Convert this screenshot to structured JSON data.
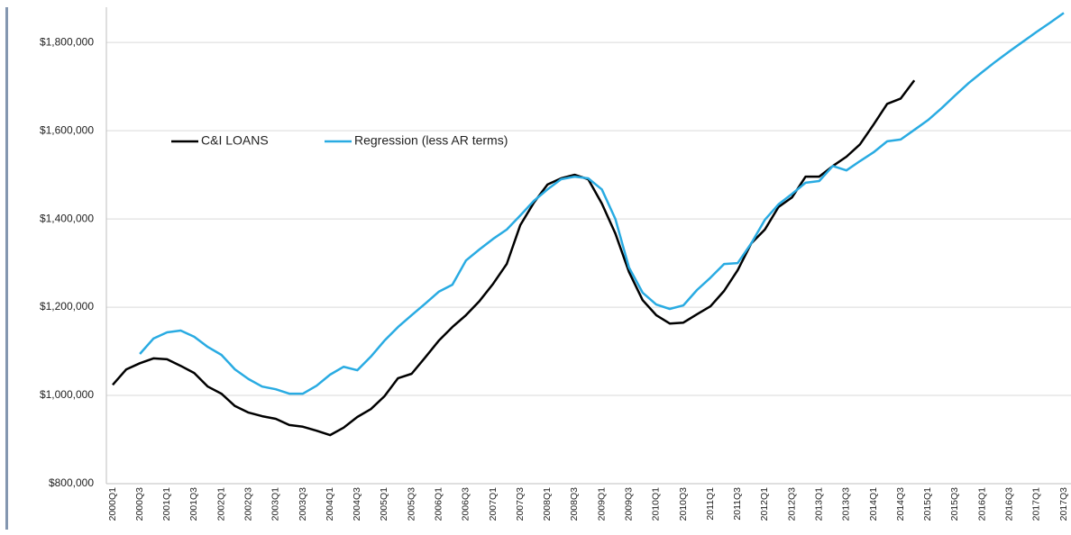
{
  "chart_data": {
    "type": "line",
    "categories": [
      "2000Q1",
      null,
      "2000Q3",
      null,
      "2001Q1",
      null,
      "2001Q3",
      null,
      "2002Q1",
      null,
      "2002Q3",
      null,
      "2003Q1",
      null,
      "2003Q3",
      null,
      "2004Q1",
      null,
      "2004Q3",
      null,
      "2005Q1",
      null,
      "2005Q3",
      null,
      "2006Q1",
      null,
      "2006Q3",
      null,
      "2007Q1",
      null,
      "2007Q3",
      null,
      "2008Q1",
      null,
      "2008Q3",
      null,
      "2009Q1",
      null,
      "2009Q3",
      null,
      "2010Q1",
      null,
      "2010Q3",
      null,
      "2011Q1",
      null,
      "2011Q3",
      null,
      "2012Q1",
      null,
      "2012Q3",
      null,
      "2013Q1",
      null,
      "2013Q3",
      null,
      "2014Q1",
      null,
      "2014Q3",
      null,
      "2015Q1",
      null,
      "2015Q3",
      null,
      "2016Q1",
      null,
      "2016Q3",
      null,
      "2017Q1",
      null,
      "2017Q3"
    ],
    "series": [
      {
        "name": "C&I LOANS",
        "color": "#000000",
        "values": [
          1024000,
          1059000,
          1073000,
          1084000,
          1082000,
          1067000,
          1051000,
          1020000,
          1004000,
          976000,
          961000,
          953000,
          947000,
          933000,
          929000,
          920000,
          910000,
          927000,
          951000,
          969000,
          998000,
          1039000,
          1049000,
          1086000,
          1124000,
          1155000,
          1182000,
          1214000,
          1253000,
          1298000,
          1386000,
          1437000,
          1478000,
          1492000,
          1500000,
          1490000,
          1435000,
          1367000,
          1280000,
          1216000,
          1182000,
          1163000,
          1165000,
          1184000,
          1202000,
          1237000,
          1284000,
          1345000,
          1376000,
          1427000,
          1449000,
          1496000,
          1496000,
          1520000,
          1541000,
          1569000,
          1614000,
          1661000,
          1673000,
          1714000,
          null,
          null,
          null,
          null,
          null,
          null,
          null,
          null,
          null,
          null,
          null
        ]
      },
      {
        "name": "Regression (less AR terms)",
        "color": "#29abe2",
        "values": [
          null,
          null,
          1094000,
          1129000,
          1143000,
          1147000,
          1133000,
          1110000,
          1092000,
          1059000,
          1037000,
          1020000,
          1014000,
          1004000,
          1004000,
          1022000,
          1047000,
          1065000,
          1057000,
          1088000,
          1124000,
          1155000,
          1182000,
          1208000,
          1235000,
          1251000,
          1306000,
          1331000,
          1355000,
          1376000,
          1408000,
          1441000,
          1467000,
          1490000,
          1496000,
          1492000,
          1467000,
          1400000,
          1290000,
          1233000,
          1206000,
          1196000,
          1204000,
          1239000,
          1267000,
          1298000,
          1300000,
          1345000,
          1398000,
          1433000,
          1457000,
          1482000,
          1486000,
          1520000,
          1510000,
          1531000,
          1551000,
          1576000,
          1580000,
          1602000,
          1624000,
          1651000,
          1680000,
          1708000,
          1733000,
          1757000,
          1780000,
          1802000,
          1824000,
          1845000,
          1867000
        ]
      }
    ],
    "ylim": [
      800000,
      1880000
    ],
    "yticks": [
      {
        "value": 800000,
        "label": "$800,000"
      },
      {
        "value": 1000000,
        "label": "$1,000,000"
      },
      {
        "value": 1200000,
        "label": "$1,200,000"
      },
      {
        "value": 1400000,
        "label": "$1,400,000"
      },
      {
        "value": 1600000,
        "label": "$1,600,000"
      },
      {
        "value": 1800000,
        "label": "$1,800,000"
      }
    ],
    "grid": true,
    "legend": "upper left"
  }
}
